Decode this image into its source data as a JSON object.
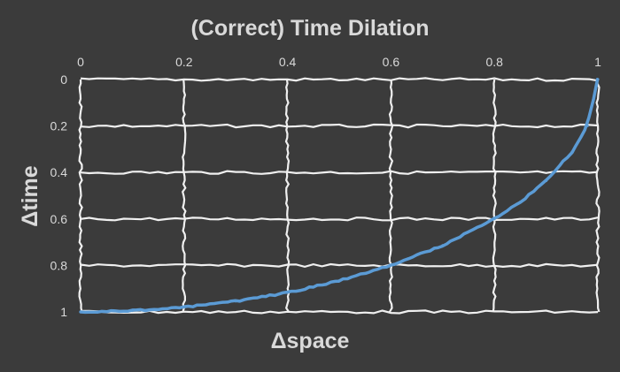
{
  "colors": {
    "background": "#3b3b3b",
    "grid": "#f0f0f0",
    "text": "#d9d9d9",
    "line": "#5b9bd5"
  },
  "chart_data": {
    "type": "line",
    "title": "(Correct) Time Dilation",
    "xlabel": "Δspace",
    "ylabel": "Δtime",
    "xlim": [
      0,
      1
    ],
    "ylim": [
      0,
      1
    ],
    "y_reversed": true,
    "x_axis_position": "top",
    "grid": true,
    "grid_style": "rough hand-drawn",
    "x_ticks": [
      "0",
      "0.2",
      "0.4",
      "0.6",
      "0.8",
      "1"
    ],
    "y_ticks": [
      "0",
      "0.2",
      "0.4",
      "0.6",
      "0.8",
      "1"
    ],
    "series": [
      {
        "color": "#5b9bd5",
        "x": [
          0,
          0.1,
          0.2,
          0.3,
          0.4,
          0.5,
          0.6,
          0.7,
          0.8,
          0.85,
          0.9,
          0.95,
          0.98,
          1
        ],
        "y": [
          1,
          0.995,
          0.98,
          0.954,
          0.917,
          0.866,
          0.8,
          0.714,
          0.6,
          0.527,
          0.436,
          0.312,
          0.199,
          0
        ]
      }
    ]
  }
}
